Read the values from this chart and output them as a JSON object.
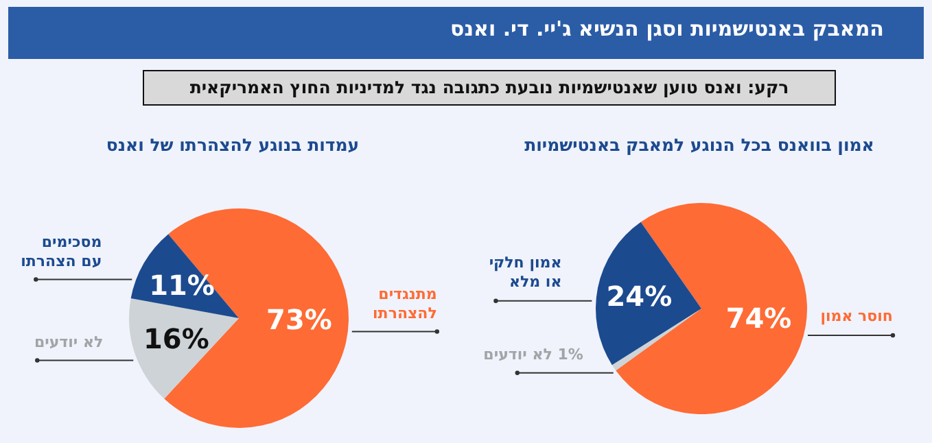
{
  "chart_data": [
    {
      "type": "other",
      "title": "המאבק באנטישמיות וסגן הנשיא ג'יי. די. ואנס",
      "subtitle": "רקע: ואנס טוען שאנטישמיות נובעת כתגובה נגד למדיניות החוץ האמריקאית"
    },
    {
      "type": "pie",
      "title": "אמון בוואנס בכל הנוגע למאבק באנטישמיות",
      "categories": [
        "חוסר אמון",
        "לא יודעים",
        "אמון חלקי או מלא"
      ],
      "values": [
        74,
        1,
        24
      ],
      "value_labels": [
        "74%",
        "1%",
        "24%"
      ],
      "colors": [
        "#fe6b35",
        "#cdd3d6",
        "#1c4a8f"
      ]
    },
    {
      "type": "pie",
      "title": "עמדות בנוגע להצהרתו של ואנס",
      "categories": [
        "מתנגדים להצהרתו",
        "לא יודעים",
        "מסכימים עם הצהרתו"
      ],
      "values": [
        73,
        16,
        11
      ],
      "value_labels": [
        "73%",
        "16%",
        "11%"
      ],
      "colors": [
        "#fe6b35",
        "#cdd3d6",
        "#1c4a8f"
      ]
    }
  ]
}
